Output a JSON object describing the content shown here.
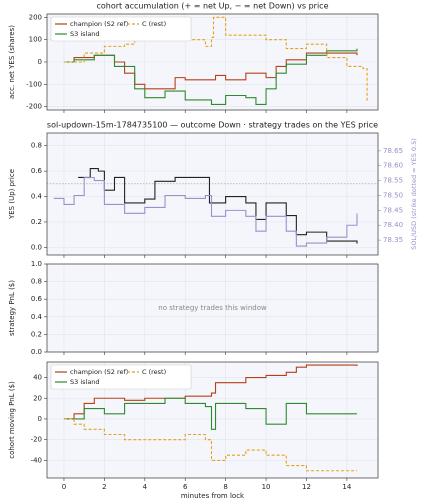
{
  "chart_data": [
    {
      "type": "line",
      "title": "cohort accumulation (+ = net Up, − = net Down) vs price",
      "ylabel": "acc. net YES (shares)",
      "xlim": [
        -0.84,
        15.54
      ],
      "xticks": [
        0,
        2,
        4,
        6,
        8,
        10,
        12,
        14
      ],
      "xtick_labels": false,
      "ylim": [
        -215,
        215
      ],
      "yticks": [
        -200,
        -100,
        0,
        100,
        200
      ],
      "grid": true,
      "step": true,
      "legend": "upper left",
      "series": [
        {
          "name": "champion (S2 ref)",
          "color": "#b5401a",
          "dashed": false,
          "x": [
            0,
            0.5,
            1.5,
            2.5,
            3,
            3.5,
            4,
            5.5,
            6,
            7.5,
            8,
            9,
            10,
            10.5,
            11,
            12,
            14.5
          ],
          "values": [
            0,
            20,
            30,
            0,
            -50,
            -100,
            -120,
            -70,
            -80,
            -60,
            -80,
            -50,
            -70,
            -20,
            10,
            40,
            30
          ]
        },
        {
          "name": "S3 island",
          "color": "#2e8a2e",
          "dashed": false,
          "x": [
            0,
            0.5,
            1.5,
            2.5,
            3.5,
            4,
            5,
            6,
            7.3,
            8,
            9,
            9.5,
            10,
            10.5,
            11,
            12,
            13,
            14.5
          ],
          "values": [
            0,
            10,
            30,
            -20,
            -120,
            -160,
            -130,
            -170,
            -190,
            -150,
            -160,
            -190,
            -120,
            -50,
            -10,
            30,
            50,
            60
          ]
        },
        {
          "name": "C (rest)",
          "color": "#e3a21a",
          "dashed": true,
          "x": [
            0,
            1,
            2,
            3,
            3.5,
            5,
            6,
            7,
            7.3,
            7.4,
            8,
            10,
            11,
            12,
            13,
            14,
            14.8,
            15
          ],
          "values": [
            0,
            40,
            70,
            80,
            100,
            110,
            100,
            70,
            110,
            200,
            120,
            100,
            60,
            80,
            20,
            -20,
            -30,
            -180
          ]
        }
      ]
    },
    {
      "type": "line",
      "title": "sol-updown-15m-1784735100 — outcome Down · strategy trades on the YES price",
      "ylabel": "YES (Up) price",
      "y2label": "SOL/USD (strike dotted = YES 0.5)",
      "xlim": [
        -0.84,
        15.54
      ],
      "xticks": [
        0,
        2,
        4,
        6,
        8,
        10,
        12,
        14
      ],
      "xtick_labels": false,
      "ylim": [
        -0.06,
        0.9
      ],
      "yticks": [
        {
          "value": 0,
          "label": "0.0"
        },
        {
          "value": 0.2,
          "label": "0.2"
        },
        {
          "value": 0.4,
          "label": "0.4"
        },
        {
          "value": 0.6,
          "label": "0.6"
        },
        {
          "value": 0.8,
          "label": "0.8"
        }
      ],
      "y2lim": [
        78.3,
        78.71
      ],
      "y2ticks": [
        78.35,
        {
          "value": 78.4,
          "label": "78.40"
        },
        78.45,
        {
          "value": 78.5,
          "label": "78.50"
        },
        78.55,
        {
          "value": 78.6,
          "label": "78.60"
        },
        78.65
      ],
      "reference_line": 0.5,
      "grid": true,
      "step": true,
      "series": [
        {
          "color": "#222222",
          "dashed": false,
          "x": [
            0.7,
            1.3,
            1.7,
            2,
            2.5,
            3,
            4,
            4.5,
            5.5,
            7.2,
            8,
            9,
            9.5,
            10,
            11,
            11.5,
            12,
            13,
            14.5
          ],
          "values": [
            0.55,
            0.62,
            0.6,
            0.45,
            0.55,
            0.35,
            0.38,
            0.52,
            0.55,
            0.35,
            0.4,
            0.35,
            0.22,
            0.35,
            0.25,
            0.1,
            0.12,
            0.05,
            0.03
          ]
        },
        {
          "color": "#9b8fc9",
          "dashed": false,
          "axis": "y2",
          "x": [
            -0.5,
            0,
            0.5,
            1,
            1.5,
            2,
            3,
            4,
            5,
            6,
            7,
            7.3,
            8,
            9,
            9.5,
            10,
            11,
            11.5,
            12,
            13,
            14,
            14.5
          ],
          "values": [
            78.49,
            78.47,
            78.5,
            78.56,
            78.55,
            78.47,
            78.44,
            78.46,
            78.5,
            78.49,
            78.5,
            78.43,
            78.45,
            78.43,
            78.38,
            78.43,
            78.38,
            78.33,
            78.34,
            78.36,
            78.4,
            78.44
          ]
        }
      ]
    },
    {
      "type": "line",
      "ylabel": "strategy PnL ($)",
      "annotation": "no strategy trades this window",
      "xlim": [
        -0.84,
        15.54
      ],
      "xticks": [
        0,
        2,
        4,
        6,
        8,
        10,
        12,
        14
      ],
      "xtick_labels": false,
      "ylim": [
        0,
        1
      ],
      "yticks": [
        {
          "value": 0,
          "label": "0.0"
        },
        {
          "value": 0.2,
          "label": "0.2"
        },
        {
          "value": 0.4,
          "label": "0.4"
        },
        {
          "value": 0.6,
          "label": "0.6"
        },
        {
          "value": 0.8,
          "label": "0.8"
        },
        {
          "value": 1,
          "label": "1.0"
        }
      ],
      "grid": true,
      "series": []
    },
    {
      "type": "line",
      "ylabel": "cohort moving PnL ($)",
      "xlabel": "minutes from lock",
      "xlim": [
        -0.84,
        15.54
      ],
      "xticks": [
        0,
        2,
        4,
        6,
        8,
        10,
        12,
        14
      ],
      "xtick_labels": true,
      "ylim": [
        -57,
        55
      ],
      "yticks": [
        -40,
        -20,
        0,
        20,
        40
      ],
      "grid": true,
      "step": true,
      "legend": "upper left",
      "series": [
        {
          "name": "champion (S2 ref)",
          "color": "#b5401a",
          "dashed": false,
          "x": [
            0,
            0.5,
            1,
            1.5,
            3,
            4,
            6,
            7.3,
            7.5,
            9,
            10,
            11,
            11.5,
            12,
            14.5
          ],
          "values": [
            0,
            5,
            15,
            20,
            18,
            20,
            22,
            25,
            35,
            40,
            42,
            45,
            50,
            52,
            51
          ]
        },
        {
          "name": "S3 island",
          "color": "#2e8a2e",
          "dashed": false,
          "x": [
            0,
            1,
            2,
            3,
            5,
            6,
            7,
            7.3,
            7.5,
            9,
            10,
            11,
            12,
            14.5
          ],
          "values": [
            0,
            10,
            5,
            15,
            20,
            15,
            12,
            -10,
            15,
            10,
            -5,
            15,
            5,
            5
          ]
        },
        {
          "name": "C (rest)",
          "color": "#e3a21a",
          "dashed": true,
          "x": [
            0,
            0.5,
            1,
            2,
            3,
            5,
            6,
            7,
            7.3,
            8,
            9,
            10,
            11,
            12,
            14.5
          ],
          "values": [
            0,
            -5,
            -10,
            -15,
            -20,
            -20,
            -15,
            -20,
            -40,
            -35,
            -30,
            -35,
            -45,
            -50,
            -50
          ]
        }
      ]
    }
  ]
}
